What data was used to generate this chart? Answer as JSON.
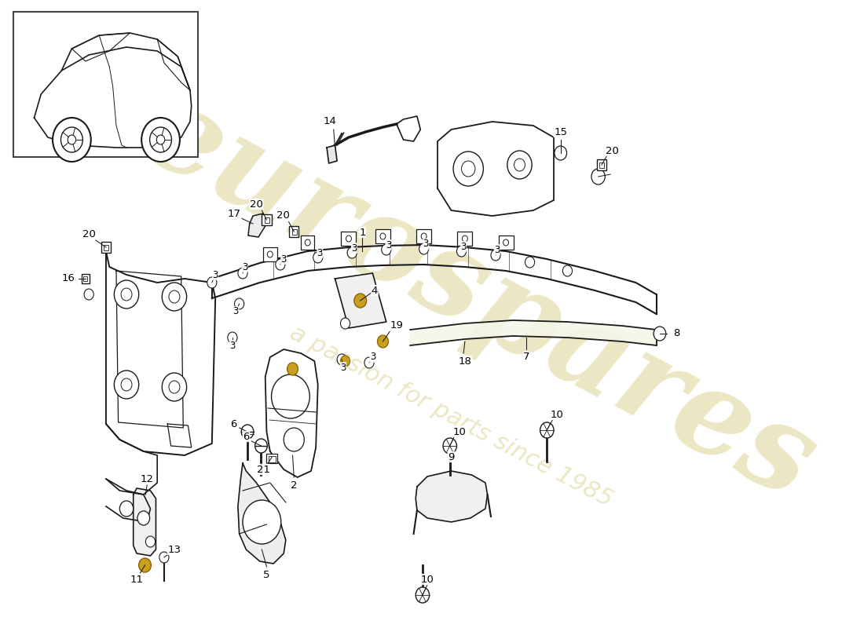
{
  "background_color": "#ffffff",
  "line_color": "#1a1a1a",
  "watermark1": "eurospares",
  "watermark2": "a passion for parts since 1985",
  "wm_color": "#d4c97a",
  "wm_alpha": 0.45,
  "figsize": [
    11.0,
    8.0
  ],
  "dpi": 100
}
